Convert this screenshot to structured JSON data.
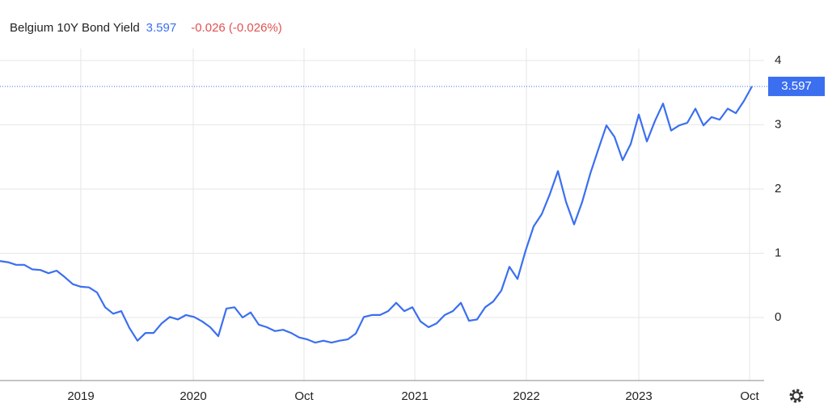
{
  "chart_data": {
    "type": "line",
    "title": "Belgium 10Y Bond Yield",
    "last": 3.597,
    "change": "-0.026 (-0.026%)",
    "color": "#3b6ff0",
    "x": [
      0,
      1,
      2,
      3,
      4,
      5,
      6,
      7,
      8,
      9,
      10,
      11,
      12,
      13,
      14,
      15,
      16,
      17,
      18,
      19,
      20,
      21,
      22,
      23,
      24,
      25,
      26,
      27,
      28,
      29,
      30,
      31,
      32,
      33,
      34,
      35,
      36,
      37,
      38,
      39,
      40,
      41,
      42,
      43,
      44,
      45,
      46,
      47,
      48,
      49,
      50,
      51,
      52,
      53,
      54,
      55,
      56,
      57,
      58,
      59,
      60,
      61,
      62,
      63,
      64,
      65,
      66,
      67,
      68,
      69,
      70,
      71,
      72,
      73,
      74,
      75,
      76,
      77,
      78,
      79,
      80,
      81,
      82,
      83,
      84,
      85,
      86,
      87,
      88,
      89,
      90,
      91,
      92,
      93
    ],
    "values": [
      0.88,
      0.86,
      0.82,
      0.82,
      0.75,
      0.74,
      0.69,
      0.73,
      0.63,
      0.52,
      0.48,
      0.47,
      0.39,
      0.16,
      0.06,
      0.1,
      -0.16,
      -0.36,
      -0.24,
      -0.24,
      -0.09,
      0.01,
      -0.03,
      0.04,
      0.01,
      -0.06,
      -0.15,
      -0.29,
      0.14,
      0.16,
      0.0,
      0.08,
      -0.11,
      -0.15,
      -0.21,
      -0.19,
      -0.24,
      -0.31,
      -0.34,
      -0.39,
      -0.36,
      -0.39,
      -0.36,
      -0.34,
      -0.25,
      0.01,
      0.04,
      0.04,
      0.1,
      0.23,
      0.1,
      0.16,
      -0.06,
      -0.15,
      -0.09,
      0.04,
      0.1,
      0.23,
      -0.05,
      -0.03,
      0.16,
      0.25,
      0.42,
      0.79,
      0.6,
      1.04,
      1.42,
      1.61,
      1.92,
      2.28,
      1.8,
      1.45,
      1.8,
      2.24,
      2.62,
      2.99,
      2.81,
      2.45,
      2.7,
      3.16,
      2.74,
      3.06,
      3.33,
      2.91,
      2.99,
      3.03,
      3.25,
      2.99,
      3.12,
      3.08,
      3.25,
      3.18,
      3.37,
      3.597
    ],
    "xlim": [
      0,
      94.5
    ],
    "xticks": [
      {
        "value": 10.0,
        "label": "2019"
      },
      {
        "value": 23.9,
        "label": "2020"
      },
      {
        "value": 37.6,
        "label": "Oct"
      },
      {
        "value": 51.3,
        "label": "2021"
      },
      {
        "value": 65.1,
        "label": "2022"
      },
      {
        "value": 79.0,
        "label": "2023"
      },
      {
        "value": 92.7,
        "label": "Oct"
      }
    ],
    "ylim": [
      -0.98,
      4.25
    ],
    "yticks": [
      0,
      1,
      2,
      3,
      4
    ],
    "grid": true
  }
}
